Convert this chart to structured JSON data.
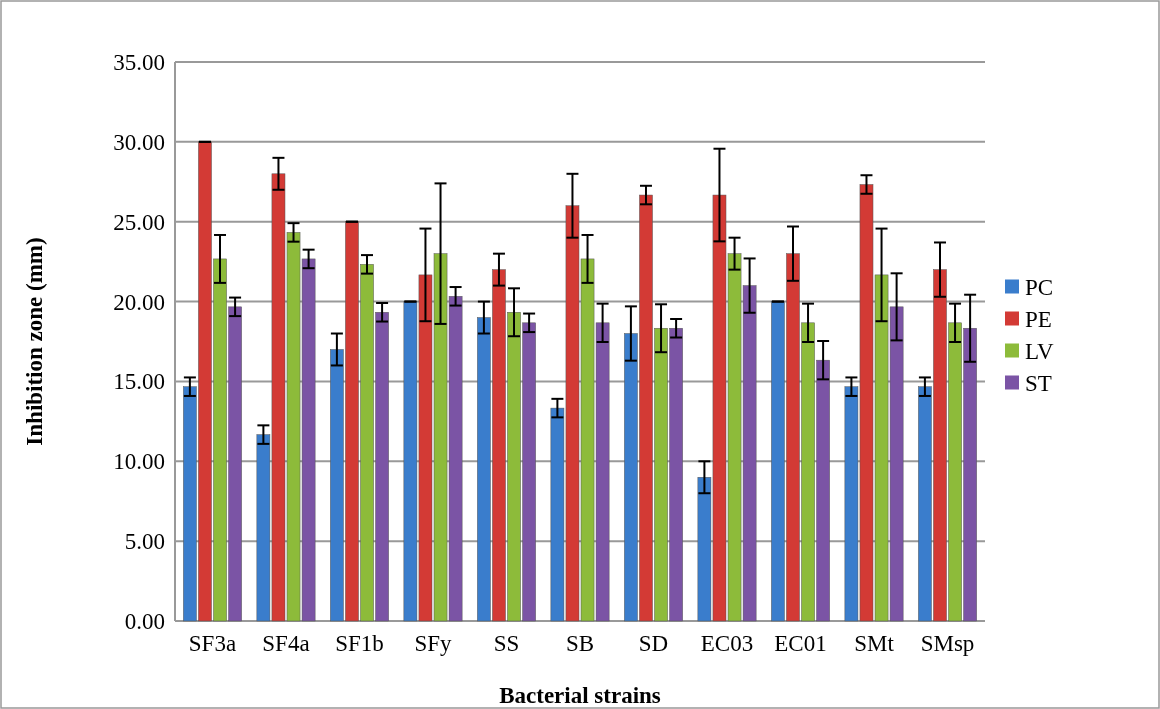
{
  "chart_data": {
    "type": "bar",
    "xlabel": "Bacterial strains",
    "ylabel": "Inhibition zone (mm)",
    "categories": [
      "SF3a",
      "SF4a",
      "SF1b",
      "SFy",
      "SS",
      "SB",
      "SD",
      "EC03",
      "EC01",
      "SMt",
      "SMsp"
    ],
    "series": [
      {
        "name": "PC",
        "color": "#3a7dcc",
        "values": [
          14.67,
          11.67,
          17,
          20,
          19,
          13.33,
          18,
          9,
          20,
          14.67,
          14.67
        ],
        "errors": [
          0.58,
          0.58,
          1,
          0,
          1,
          0.58,
          1.7,
          1,
          0,
          0.58,
          0.58
        ]
      },
      {
        "name": "PE",
        "color": "#d33a35",
        "values": [
          30,
          28,
          25,
          21.67,
          22,
          26,
          26.67,
          26.67,
          23,
          27.33,
          22
        ],
        "errors": [
          0,
          1,
          0,
          2.9,
          1,
          2,
          0.58,
          2.9,
          1.7,
          0.58,
          1.7
        ]
      },
      {
        "name": "LV",
        "color": "#8dbb3a",
        "values": [
          22.67,
          24.33,
          22.33,
          23,
          19.33,
          22.67,
          18.33,
          23,
          18.67,
          21.67,
          18.67
        ],
        "errors": [
          1.5,
          0.58,
          0.58,
          4.4,
          1.5,
          1.5,
          1.5,
          1,
          1.2,
          2.9,
          1.2
        ]
      },
      {
        "name": "ST",
        "color": "#7b54a5",
        "values": [
          19.67,
          22.67,
          19.33,
          20.33,
          18.67,
          18.67,
          18.33,
          21,
          16.33,
          19.67,
          18.33
        ],
        "errors": [
          0.58,
          0.58,
          0.58,
          0.58,
          0.58,
          1.2,
          0.58,
          1.7,
          1.2,
          2.1,
          2.1
        ]
      }
    ],
    "ylim": [
      0,
      35
    ],
    "yticks": [
      {
        "value": 0,
        "label": "0.00"
      },
      {
        "value": 5,
        "label": "5.00"
      },
      {
        "value": 10,
        "label": "10.00"
      },
      {
        "value": 15,
        "label": "15.00"
      },
      {
        "value": 20,
        "label": "20.00"
      },
      {
        "value": 25,
        "label": "25.00"
      },
      {
        "value": 30,
        "label": "30.00"
      },
      {
        "value": 35,
        "label": "35.00"
      }
    ],
    "grid": "y",
    "legend": "right"
  }
}
